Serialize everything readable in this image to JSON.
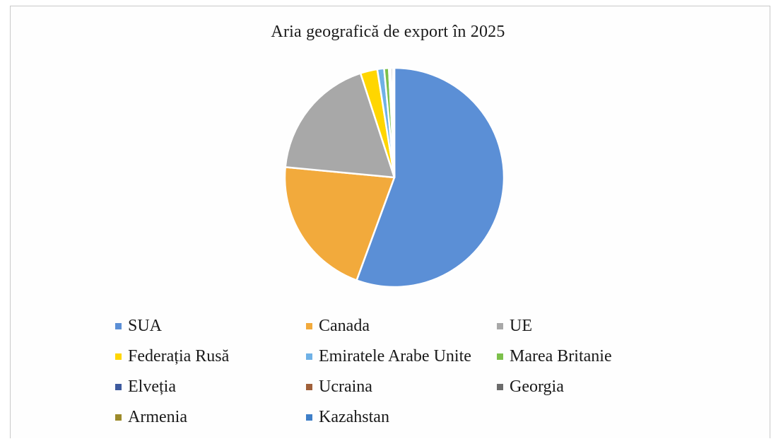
{
  "chart_data": {
    "type": "pie",
    "title": "Aria geografică de export în 2025",
    "legend_position": "bottom",
    "categories": [
      "SUA",
      "Canada",
      "UE",
      "Federația Rusă",
      "Emiratele Arabe Unite",
      "Marea Britanie",
      "Elveția",
      "Ucraina",
      "Georgia",
      "Armenia",
      "Kazahstan"
    ],
    "values": [
      55.6,
      20.9,
      18.5,
      2.5,
      1.0,
      0.7,
      0.2,
      0.1,
      0.3,
      0.1,
      0.1
    ],
    "colors": [
      "#5b8fd6",
      "#f2aa3c",
      "#a8a8a8",
      "#ffd600",
      "#6fb1e6",
      "#7cc04b",
      "#3d5a9e",
      "#a0603a",
      "#6b6b6b",
      "#9c8a2a",
      "#3f7fc8"
    ]
  }
}
